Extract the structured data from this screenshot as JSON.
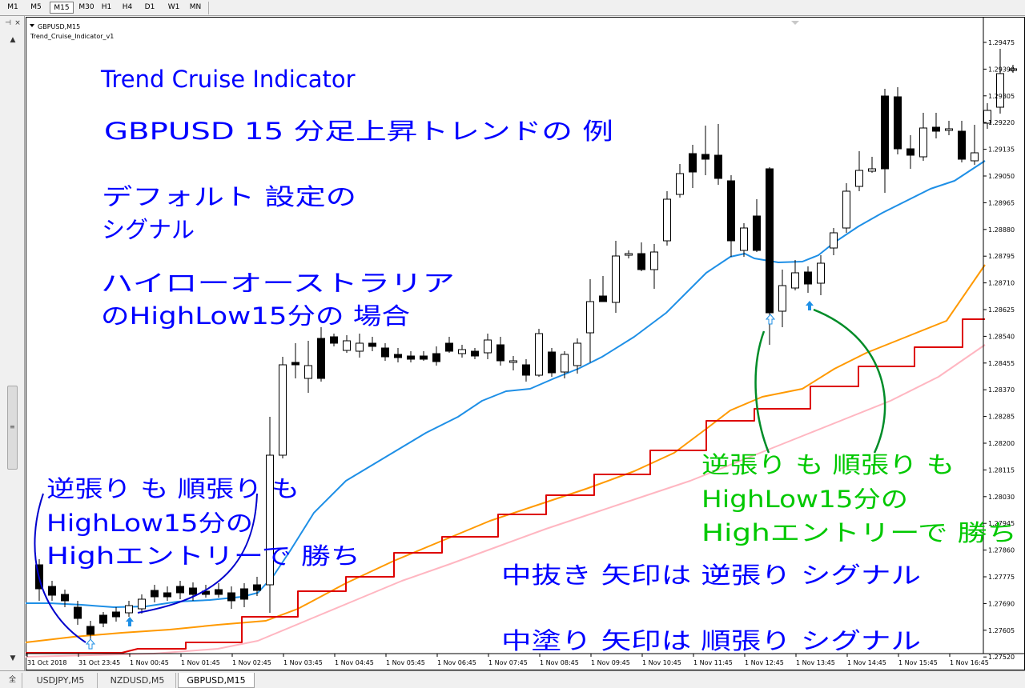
{
  "toolbar": {
    "timeframes": [
      "M1",
      "M5",
      "M15",
      "M30",
      "H1",
      "H4",
      "D1",
      "W1",
      "MN"
    ],
    "active_timeframe": "M15"
  },
  "chart": {
    "symbol_label": "GBPUSD,M15",
    "indicator_label": "Trend_Cruise_Indicator_v1",
    "price_labels": [
      "1.29475",
      "1.29390",
      "1.29305",
      "1.29220",
      "1.29135",
      "1.29050",
      "1.28965",
      "1.28880",
      "1.28795",
      "1.28710",
      "1.28625",
      "1.28540",
      "1.28455",
      "1.28370",
      "1.28285",
      "1.28200",
      "1.28115",
      "1.28030",
      "1.27945",
      "1.27860",
      "1.27775",
      "1.27690",
      "1.27605",
      "1.27520"
    ],
    "time_labels": [
      "31 Oct 2018",
      "31 Oct 23:45",
      "1 Nov 00:45",
      "1 Nov 01:45",
      "1 Nov 02:45",
      "1 Nov 03:45",
      "1 Nov 04:45",
      "1 Nov 05:45",
      "1 Nov 06:45",
      "1 Nov 07:45",
      "1 Nov 08:45",
      "1 Nov 09:45",
      "1 Nov 10:45",
      "1 Nov 11:45",
      "1 Nov 12:45",
      "1 Nov 13:45",
      "1 Nov 14:45",
      "1 Nov 15:45",
      "1 Nov 16:45"
    ]
  },
  "annotations": {
    "title": "Trend Cruise Indicator",
    "subtitle": "GBPUSD 15 分足上昇トレンドの 例",
    "default_line1": "デフォルト 設定の",
    "default_line2": "シグナル",
    "broker_line1": "ハイローオーストラリア",
    "broker_line2": "のHighLow15分の 場合",
    "left_note_line1": "逆張り も 順張り も",
    "left_note_line2": "HighLow15分の",
    "left_note_line3": "Highエントリーで 勝ち",
    "right_note_line1": "逆張り も 順張り も",
    "right_note_line2": "HighLow15分の",
    "right_note_line3": "Highエントリーで 勝ち",
    "legend_hollow": "中抜き 矢印は 逆張り シグナル",
    "legend_filled": "中塗り 矢印は 順張り シグナル"
  },
  "tabs": [
    "USDJPY,M5",
    "NZDUSD,M5",
    "GBPUSD,M15"
  ],
  "active_tab": "GBPUSD,M15",
  "colors": {
    "annotation_blue": "#0000ff",
    "annotation_green": "#00c800",
    "curve_green": "#008c28",
    "blue_line": "#1e8fe6",
    "orange_line": "#ff9900",
    "red_line": "#dd0000",
    "pink_line": "#ffb6c1"
  }
}
